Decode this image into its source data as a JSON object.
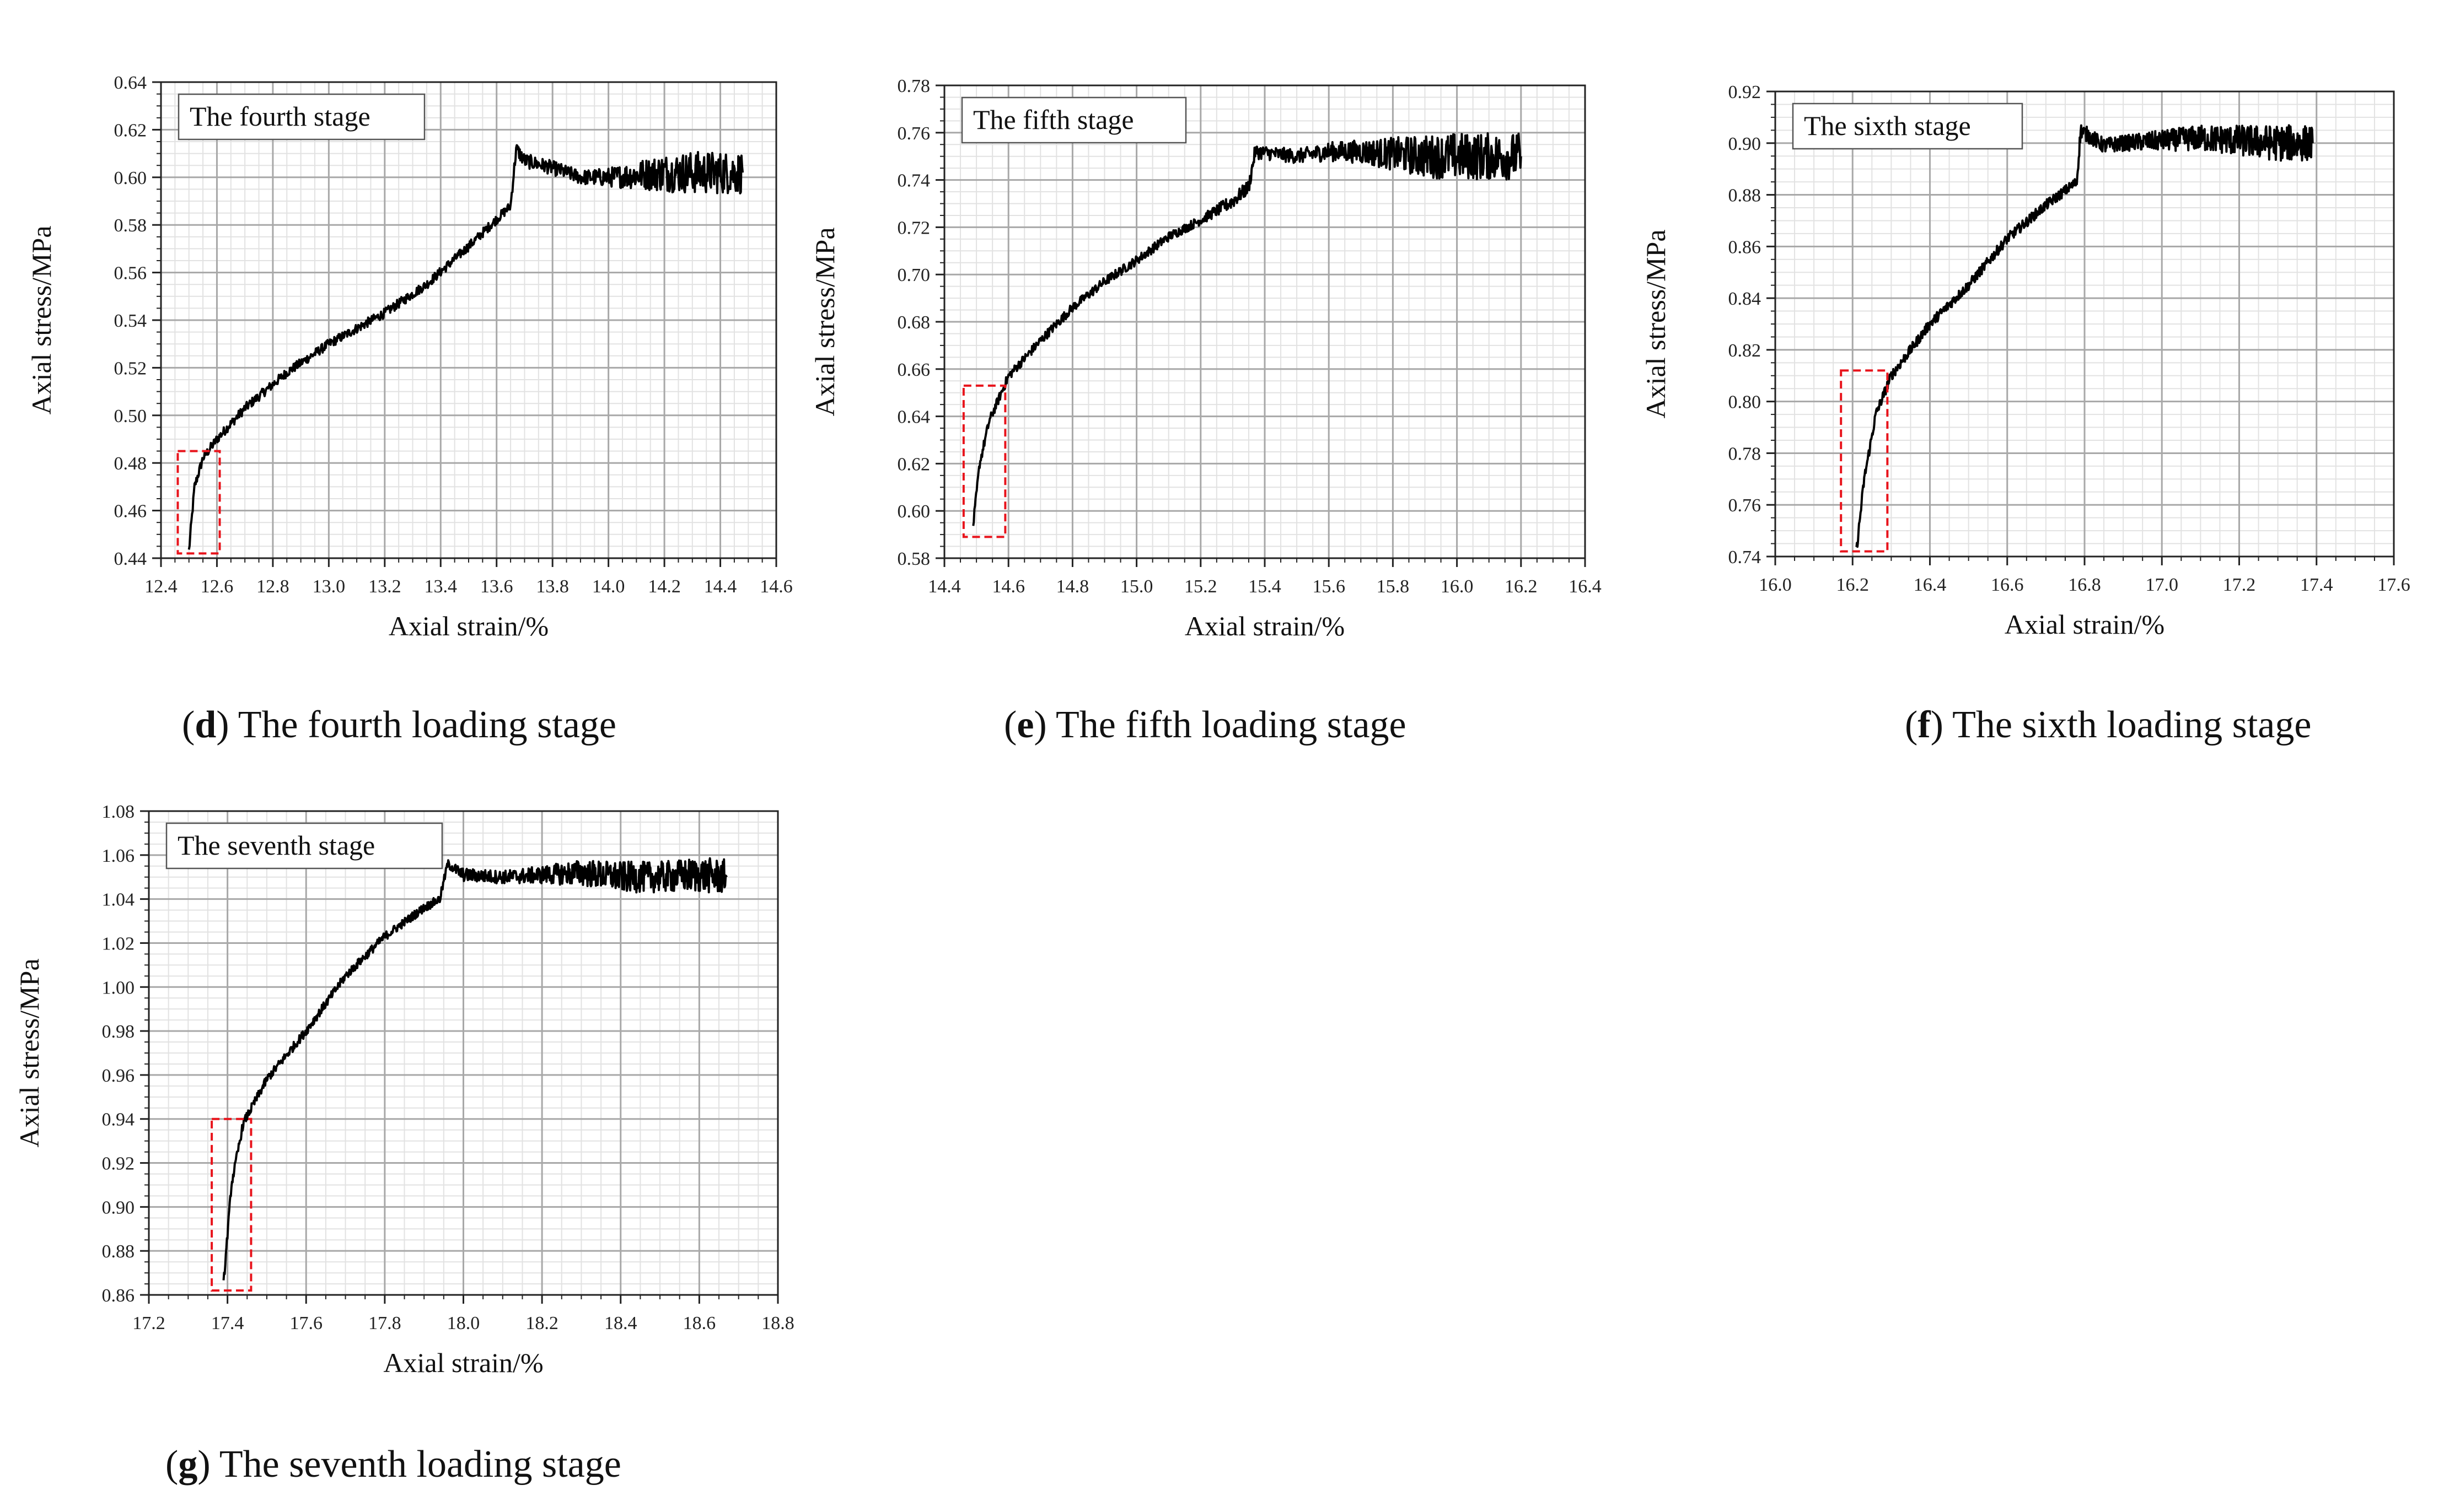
{
  "figure": {
    "panels": [
      {
        "letter": "d",
        "caption": " The fourth loading stage"
      },
      {
        "letter": "e",
        "caption": " The fifth loading stage"
      },
      {
        "letter": "f",
        "caption": " The sixth loading stage"
      },
      {
        "letter": "g",
        "caption": " The seventh loading stage"
      }
    ]
  },
  "chart_data": [
    {
      "type": "line",
      "title": "The fourth stage",
      "xlabel": "Axial strain/%",
      "ylabel": "Axial stress/MPa",
      "xlim": [
        12.4,
        14.6
      ],
      "ylim": [
        0.44,
        0.64
      ],
      "xticks": [
        "12.4",
        "12.6",
        "12.8",
        "13.0",
        "13.2",
        "13.4",
        "13.6",
        "13.8",
        "14.0",
        "14.2",
        "14.4",
        "14.6"
      ],
      "yticks": [
        "0.44",
        "0.46",
        "0.48",
        "0.50",
        "0.52",
        "0.54",
        "0.56",
        "0.58",
        "0.60",
        "0.62",
        "0.64"
      ],
      "grid": true,
      "annotation_box": {
        "x": [
          12.46,
          12.61
        ],
        "y": [
          0.442,
          0.485
        ]
      },
      "series": [
        {
          "values": [
            [
              12.5,
              0.443
            ],
            [
              12.52,
              0.47
            ],
            [
              12.55,
              0.482
            ],
            [
              12.6,
              0.49
            ],
            [
              12.7,
              0.503
            ],
            [
              12.85,
              0.518
            ],
            [
              13.0,
              0.53
            ],
            [
              13.2,
              0.543
            ],
            [
              13.35,
              0.555
            ],
            [
              13.5,
              0.571
            ],
            [
              13.65,
              0.588
            ],
            [
              13.67,
              0.612
            ],
            [
              13.7,
              0.607
            ],
            [
              13.8,
              0.604
            ],
            [
              13.9,
              0.6
            ],
            [
              14.0,
              0.6
            ],
            [
              14.1,
              0.601
            ],
            [
              14.2,
              0.602
            ],
            [
              14.3,
              0.602
            ],
            [
              14.4,
              0.602
            ],
            [
              14.48,
              0.602
            ]
          ],
          "noise": [
            0.002,
            0.002,
            0.002,
            0.002,
            0.002,
            0.002,
            0.002,
            0.002,
            0.002,
            0.002,
            0.002,
            0.003,
            0.003,
            0.003,
            0.003,
            0.004,
            0.006,
            0.008,
            0.009,
            0.009,
            0.009
          ]
        }
      ]
    },
    {
      "type": "line",
      "title": "The fifth stage",
      "xlabel": "Axial strain/%",
      "ylabel": "Axial stress/MPa",
      "xlim": [
        14.4,
        16.4
      ],
      "ylim": [
        0.58,
        0.78
      ],
      "xticks": [
        "14.4",
        "14.6",
        "14.8",
        "15.0",
        "15.2",
        "15.4",
        "15.6",
        "15.8",
        "16.0",
        "16.2",
        "16.4"
      ],
      "yticks": [
        "0.58",
        "0.60",
        "0.62",
        "0.64",
        "0.66",
        "0.68",
        "0.70",
        "0.72",
        "0.74",
        "0.76",
        "0.78"
      ],
      "grid": true,
      "annotation_box": {
        "x": [
          14.46,
          14.59
        ],
        "y": [
          0.589,
          0.653
        ]
      },
      "series": [
        {
          "values": [
            [
              14.49,
              0.594
            ],
            [
              14.51,
              0.62
            ],
            [
              14.54,
              0.638
            ],
            [
              14.6,
              0.657
            ],
            [
              14.7,
              0.672
            ],
            [
              14.8,
              0.686
            ],
            [
              14.9,
              0.697
            ],
            [
              15.0,
              0.706
            ],
            [
              15.1,
              0.716
            ],
            [
              15.2,
              0.723
            ],
            [
              15.3,
              0.731
            ],
            [
              15.35,
              0.737
            ],
            [
              15.37,
              0.752
            ],
            [
              15.5,
              0.75
            ],
            [
              15.6,
              0.752
            ],
            [
              15.7,
              0.752
            ],
            [
              15.8,
              0.751
            ],
            [
              15.9,
              0.75
            ],
            [
              16.0,
              0.75
            ],
            [
              16.1,
              0.75
            ],
            [
              16.2,
              0.75
            ]
          ],
          "noise": [
            0.002,
            0.002,
            0.002,
            0.002,
            0.002,
            0.002,
            0.002,
            0.002,
            0.002,
            0.002,
            0.003,
            0.003,
            0.003,
            0.003,
            0.004,
            0.005,
            0.007,
            0.009,
            0.01,
            0.01,
            0.01
          ]
        }
      ]
    },
    {
      "type": "line",
      "title": "The sixth stage",
      "xlabel": "Axial strain/%",
      "ylabel": "Axial stress/MPa",
      "xlim": [
        16.0,
        17.6
      ],
      "ylim": [
        0.74,
        0.92
      ],
      "xticks": [
        "16.0",
        "16.2",
        "16.4",
        "16.6",
        "16.8",
        "17.0",
        "17.2",
        "17.4",
        "17.6"
      ],
      "yticks": [
        "0.74",
        "0.76",
        "0.78",
        "0.80",
        "0.82",
        "0.84",
        "0.86",
        "0.88",
        "0.90",
        "0.92"
      ],
      "grid": true,
      "annotation_box": {
        "x": [
          16.17,
          16.29
        ],
        "y": [
          0.742,
          0.812
        ]
      },
      "series": [
        {
          "values": [
            [
              16.21,
              0.742
            ],
            [
              16.23,
              0.77
            ],
            [
              16.26,
              0.795
            ],
            [
              16.3,
              0.81
            ],
            [
              16.35,
              0.82
            ],
            [
              16.4,
              0.83
            ],
            [
              16.5,
              0.845
            ],
            [
              16.6,
              0.863
            ],
            [
              16.7,
              0.876
            ],
            [
              16.78,
              0.885
            ],
            [
              16.79,
              0.905
            ],
            [
              16.85,
              0.899
            ],
            [
              16.9,
              0.9
            ],
            [
              17.0,
              0.901
            ],
            [
              17.1,
              0.902
            ],
            [
              17.2,
              0.901
            ],
            [
              17.3,
              0.9
            ],
            [
              17.39,
              0.9
            ]
          ],
          "noise": [
            0.002,
            0.002,
            0.002,
            0.002,
            0.002,
            0.002,
            0.002,
            0.002,
            0.002,
            0.002,
            0.003,
            0.003,
            0.003,
            0.004,
            0.005,
            0.006,
            0.007,
            0.007
          ]
        }
      ]
    },
    {
      "type": "line",
      "title": "The seventh stage",
      "xlabel": "Axial strain/%",
      "ylabel": "Axial stress/MPa",
      "xlim": [
        17.2,
        18.8
      ],
      "ylim": [
        0.86,
        1.08
      ],
      "xticks": [
        "17.2",
        "17.4",
        "17.6",
        "17.8",
        "18.0",
        "18.2",
        "18.4",
        "18.6",
        "18.8"
      ],
      "yticks": [
        "0.86",
        "0.88",
        "0.90",
        "0.92",
        "0.94",
        "0.96",
        "0.98",
        "1.00",
        "1.02",
        "1.04",
        "1.06",
        "1.08"
      ],
      "grid": true,
      "annotation_box": {
        "x": [
          17.36,
          17.46
        ],
        "y": [
          0.862,
          0.94
        ]
      },
      "series": [
        {
          "values": [
            [
              17.39,
              0.865
            ],
            [
              17.41,
              0.91
            ],
            [
              17.44,
              0.938
            ],
            [
              17.5,
              0.958
            ],
            [
              17.6,
              0.98
            ],
            [
              17.7,
              1.005
            ],
            [
              17.8,
              1.023
            ],
            [
              17.9,
              1.036
            ],
            [
              17.94,
              1.04
            ],
            [
              17.96,
              1.056
            ],
            [
              18.0,
              1.051
            ],
            [
              18.1,
              1.05
            ],
            [
              18.2,
              1.051
            ],
            [
              18.3,
              1.052
            ],
            [
              18.4,
              1.05
            ],
            [
              18.5,
              1.05
            ],
            [
              18.6,
              1.051
            ],
            [
              18.67,
              1.05
            ]
          ],
          "noise": [
            0.002,
            0.002,
            0.002,
            0.002,
            0.002,
            0.002,
            0.002,
            0.002,
            0.002,
            0.002,
            0.003,
            0.003,
            0.004,
            0.006,
            0.007,
            0.007,
            0.008,
            0.008
          ]
        }
      ]
    }
  ]
}
